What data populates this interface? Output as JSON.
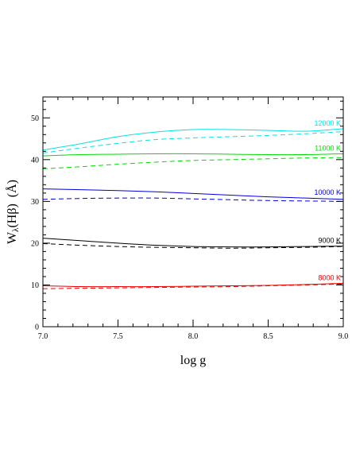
{
  "chart_data": {
    "type": "line",
    "xlabel": "log g",
    "ylabel": "Wλ(Hβ) (Å)",
    "ylabel_parts": {
      "main": "W",
      "sub": "λ",
      "rest": "(Hβ)  (Å)"
    },
    "xlim": [
      7.0,
      9.0
    ],
    "ylim": [
      0,
      55
    ],
    "xticks": [
      "7.0",
      "7.5",
      "8.0",
      "8.5",
      "9.0"
    ],
    "yticks": [
      "0",
      "10",
      "20",
      "30",
      "40",
      "50"
    ],
    "grid": false,
    "series": [
      {
        "name": "12000 K",
        "color": "#00e5e5",
        "solid": {
          "x": [
            7.0,
            7.25,
            7.5,
            7.75,
            8.0,
            8.25,
            8.5,
            8.75,
            9.0
          ],
          "y": [
            42.3,
            43.8,
            45.5,
            46.6,
            47.2,
            47.2,
            47.0,
            46.8,
            47.4
          ]
        },
        "dashed": {
          "x": [
            7.0,
            7.25,
            7.5,
            7.75,
            8.0,
            8.25,
            8.5,
            8.75,
            9.0
          ],
          "y": [
            41.6,
            42.8,
            43.9,
            44.8,
            45.2,
            45.5,
            45.8,
            46.2,
            46.7
          ]
        }
      },
      {
        "name": "11000 K",
        "color": "#00dd00",
        "solid": {
          "x": [
            7.0,
            7.25,
            7.5,
            7.75,
            8.0,
            8.25,
            8.5,
            8.75,
            9.0
          ],
          "y": [
            40.9,
            41.2,
            41.3,
            41.4,
            41.4,
            41.3,
            41.2,
            41.2,
            41.4
          ]
        },
        "dashed": {
          "x": [
            7.0,
            7.25,
            7.5,
            7.75,
            8.0,
            8.25,
            8.5,
            8.75,
            9.0
          ],
          "y": [
            37.8,
            38.3,
            38.9,
            39.4,
            39.8,
            40.0,
            40.2,
            40.4,
            40.5
          ]
        }
      },
      {
        "name": "10000 K",
        "color": "#0000dd",
        "solid": {
          "x": [
            7.0,
            7.25,
            7.5,
            7.75,
            8.0,
            8.25,
            8.5,
            8.75,
            9.0
          ],
          "y": [
            33.0,
            32.8,
            32.6,
            32.3,
            31.9,
            31.5,
            31.1,
            30.8,
            30.5
          ]
        },
        "dashed": {
          "x": [
            7.0,
            7.25,
            7.5,
            7.75,
            8.0,
            8.25,
            8.5,
            8.75,
            9.0
          ],
          "y": [
            30.5,
            30.7,
            30.8,
            30.8,
            30.6,
            30.4,
            30.2,
            30.1,
            30.0
          ]
        }
      },
      {
        "name": "9000 K",
        "color": "#000000",
        "solid": {
          "x": [
            7.0,
            7.25,
            7.5,
            7.75,
            8.0,
            8.25,
            8.5,
            8.75,
            9.0
          ],
          "y": [
            21.2,
            20.6,
            20.0,
            19.5,
            19.2,
            19.1,
            19.1,
            19.2,
            19.3
          ]
        },
        "dashed": {
          "x": [
            7.0,
            7.25,
            7.5,
            7.75,
            8.0,
            8.25,
            8.5,
            8.75,
            9.0
          ],
          "y": [
            19.9,
            19.5,
            19.2,
            19.0,
            18.9,
            18.8,
            18.9,
            19.0,
            19.2
          ]
        }
      },
      {
        "name": "8000 K",
        "color": "#ee0000",
        "solid": {
          "x": [
            7.0,
            7.25,
            7.5,
            7.75,
            8.0,
            8.25,
            8.5,
            8.75,
            9.0
          ],
          "y": [
            9.8,
            9.6,
            9.6,
            9.6,
            9.7,
            9.8,
            9.9,
            10.1,
            10.4
          ]
        },
        "dashed": {
          "x": [
            7.0,
            7.25,
            7.5,
            7.75,
            8.0,
            8.25,
            8.5,
            8.75,
            9.0
          ],
          "y": [
            9.1,
            9.2,
            9.3,
            9.4,
            9.5,
            9.6,
            9.8,
            10.0,
            10.2
          ]
        }
      }
    ]
  }
}
